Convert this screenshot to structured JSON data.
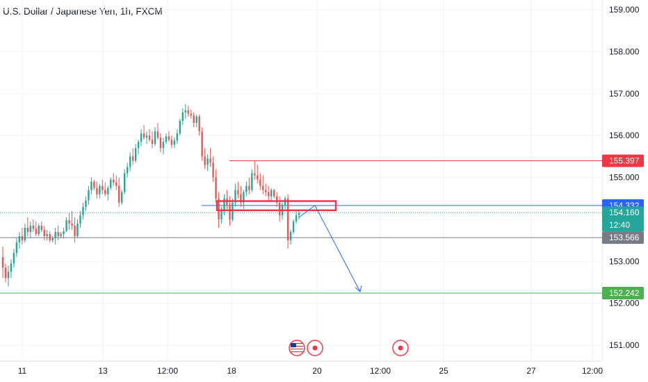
{
  "header": {
    "title": "U.S. Dollar / Japanese Yen, 1h, FXCM"
  },
  "colors": {
    "up": "#26a69a",
    "down": "#ef5350",
    "grid": "#f0f3fa",
    "resistance": "#f23645",
    "support": "#4caf50",
    "blue": "#2962ff",
    "gray": "#787b86"
  },
  "icons": [
    "us-flag-icon",
    "economic-event-icon",
    "economic-event-icon"
  ],
  "chart_data": {
    "type": "candlestick",
    "title": "U.S. Dollar / Japanese Yen, 1h, FXCM",
    "symbol": "USDJPY",
    "interval": "1h",
    "source": "FXCM",
    "y_axis": {
      "ticks": [
        "151.000",
        "152.000",
        "153.000",
        "154.000",
        "155.000",
        "156.000",
        "157.000",
        "158.000",
        "159.000"
      ],
      "range": [
        150.7,
        159.25
      ],
      "side": "right"
    },
    "x_axis": {
      "ticks": [
        "11",
        "13",
        "12:00",
        "18",
        "20",
        "12:00",
        "25",
        "27",
        "12:00"
      ]
    },
    "price_labels": [
      {
        "id": "resistance",
        "text": "155.397",
        "value": 155.397,
        "color": "#f23645"
      },
      {
        "id": "level",
        "text": "154.332",
        "value": 154.332,
        "color": "#2962ff"
      },
      {
        "id": "current",
        "text": "154.160",
        "value": 154.16,
        "countdown": "12:40",
        "color": "#26a69a"
      },
      {
        "id": "gray",
        "text": "153.566",
        "value": 153.566,
        "color": "#787b86"
      },
      {
        "id": "target",
        "text": "152.242",
        "value": 152.242,
        "color": "#4caf50"
      }
    ],
    "candles": [
      [
        153.1,
        153.35,
        152.6,
        152.85
      ],
      [
        152.85,
        152.95,
        152.5,
        152.6
      ],
      [
        152.6,
        152.9,
        152.4,
        152.75
      ],
      [
        152.75,
        153.05,
        152.6,
        152.95
      ],
      [
        152.95,
        153.3,
        152.85,
        153.2
      ],
      [
        153.2,
        153.55,
        153.1,
        153.45
      ],
      [
        153.45,
        153.7,
        153.3,
        153.6
      ],
      [
        153.6,
        153.8,
        153.4,
        153.5
      ],
      [
        153.5,
        153.9,
        153.45,
        153.8
      ],
      [
        153.8,
        154.05,
        153.6,
        153.7
      ],
      [
        153.7,
        153.95,
        153.55,
        153.85
      ],
      [
        153.85,
        154.0,
        153.7,
        153.78
      ],
      [
        153.78,
        153.95,
        153.6,
        153.65
      ],
      [
        153.65,
        153.9,
        153.6,
        153.85
      ],
      [
        153.85,
        153.95,
        153.7,
        153.75
      ],
      [
        153.75,
        153.85,
        153.5,
        153.6
      ],
      [
        153.6,
        153.75,
        153.5,
        153.65
      ],
      [
        153.65,
        153.72,
        153.45,
        153.5
      ],
      [
        153.5,
        153.6,
        153.45,
        153.55
      ],
      [
        153.55,
        153.8,
        153.4,
        153.7
      ],
      [
        153.7,
        153.85,
        153.5,
        153.6
      ],
      [
        153.6,
        153.7,
        153.55,
        153.65
      ],
      [
        153.65,
        153.8,
        153.55,
        153.72
      ],
      [
        153.72,
        154.05,
        153.7,
        153.98
      ],
      [
        153.98,
        154.15,
        153.75,
        153.9
      ],
      [
        153.9,
        154.2,
        153.75,
        153.85
      ],
      [
        153.85,
        154.05,
        153.45,
        153.6
      ],
      [
        153.6,
        154.0,
        153.55,
        153.9
      ],
      [
        153.9,
        154.2,
        153.8,
        154.1
      ],
      [
        154.1,
        154.4,
        154.0,
        154.3
      ],
      [
        154.3,
        154.55,
        154.2,
        154.45
      ],
      [
        154.45,
        154.8,
        154.35,
        154.7
      ],
      [
        154.7,
        155.0,
        154.6,
        154.9
      ],
      [
        154.9,
        154.95,
        154.7,
        154.75
      ],
      [
        154.75,
        154.9,
        154.5,
        154.6
      ],
      [
        154.6,
        154.85,
        154.5,
        154.8
      ],
      [
        154.8,
        154.95,
        154.6,
        154.7
      ],
      [
        154.7,
        154.88,
        154.55,
        154.6
      ],
      [
        154.6,
        154.8,
        154.45,
        154.75
      ],
      [
        154.75,
        155.0,
        154.7,
        154.95
      ],
      [
        154.95,
        155.1,
        154.8,
        154.88
      ],
      [
        154.88,
        155.05,
        154.7,
        154.8
      ],
      [
        154.8,
        155.0,
        154.3,
        154.4
      ],
      [
        154.4,
        154.7,
        154.35,
        154.65
      ],
      [
        154.65,
        155.2,
        154.6,
        155.1
      ],
      [
        155.1,
        155.35,
        155.0,
        155.25
      ],
      [
        155.25,
        155.6,
        155.15,
        155.5
      ],
      [
        155.5,
        155.7,
        155.3,
        155.4
      ],
      [
        155.4,
        155.8,
        155.35,
        155.7
      ],
      [
        155.7,
        155.9,
        155.55,
        155.85
      ],
      [
        155.85,
        156.15,
        155.75,
        156.05
      ],
      [
        156.05,
        156.25,
        155.9,
        155.95
      ],
      [
        155.95,
        156.1,
        155.8,
        156.0
      ],
      [
        156.0,
        156.15,
        155.85,
        155.9
      ],
      [
        155.9,
        156.1,
        155.7,
        155.8
      ],
      [
        155.8,
        156.2,
        155.75,
        156.1
      ],
      [
        156.1,
        156.3,
        155.9,
        155.95
      ],
      [
        155.95,
        156.05,
        155.6,
        155.7
      ],
      [
        155.7,
        155.95,
        155.55,
        155.85
      ],
      [
        155.85,
        156.05,
        155.8,
        155.98
      ],
      [
        155.98,
        156.1,
        155.85,
        155.9
      ],
      [
        155.9,
        156.0,
        155.7,
        155.78
      ],
      [
        155.78,
        155.95,
        155.7,
        155.88
      ],
      [
        155.88,
        156.15,
        155.8,
        156.05
      ],
      [
        156.05,
        156.4,
        156.0,
        156.35
      ],
      [
        156.35,
        156.65,
        156.25,
        156.55
      ],
      [
        156.55,
        156.75,
        156.4,
        156.6
      ],
      [
        156.6,
        156.7,
        156.45,
        156.52
      ],
      [
        156.52,
        156.62,
        156.4,
        156.48
      ],
      [
        156.48,
        156.55,
        156.2,
        156.3
      ],
      [
        156.3,
        156.5,
        156.2,
        156.45
      ],
      [
        156.45,
        156.5,
        156.0,
        156.1
      ],
      [
        156.1,
        156.2,
        155.4,
        155.5
      ],
      [
        155.5,
        155.7,
        155.2,
        155.3
      ],
      [
        155.3,
        155.55,
        155.15,
        155.45
      ],
      [
        155.45,
        155.7,
        155.25,
        155.35
      ],
      [
        155.35,
        155.5,
        154.9,
        155.0
      ],
      [
        155.0,
        155.2,
        154.4,
        154.5
      ],
      [
        154.5,
        154.65,
        153.8,
        154.0
      ],
      [
        154.0,
        154.3,
        153.9,
        154.2
      ],
      [
        154.2,
        154.6,
        154.1,
        154.5
      ],
      [
        154.5,
        154.7,
        154.25,
        154.35
      ],
      [
        154.35,
        154.55,
        153.85,
        154.0
      ],
      [
        154.0,
        154.5,
        153.95,
        154.4
      ],
      [
        154.4,
        154.85,
        154.3,
        154.7
      ],
      [
        154.7,
        154.9,
        154.5,
        154.6
      ],
      [
        154.6,
        154.8,
        154.3,
        154.4
      ],
      [
        154.4,
        154.7,
        154.25,
        154.65
      ],
      [
        154.65,
        154.9,
        154.55,
        154.8
      ],
      [
        154.8,
        155.0,
        154.6,
        154.7
      ],
      [
        154.7,
        155.2,
        154.65,
        155.1
      ],
      [
        155.1,
        155.4,
        154.95,
        155.05
      ],
      [
        155.05,
        155.3,
        154.85,
        154.95
      ],
      [
        154.95,
        155.1,
        154.7,
        154.8
      ],
      [
        154.8,
        155.05,
        154.6,
        154.7
      ],
      [
        154.7,
        154.85,
        154.55,
        154.65
      ],
      [
        154.65,
        154.8,
        154.45,
        154.55
      ],
      [
        154.55,
        154.75,
        154.45,
        154.7
      ],
      [
        154.7,
        154.72,
        154.5,
        154.55
      ],
      [
        154.55,
        154.65,
        154.3,
        154.4
      ],
      [
        154.4,
        154.55,
        153.95,
        154.1
      ],
      [
        154.1,
        154.4,
        154.0,
        154.35
      ],
      [
        154.35,
        154.55,
        154.25,
        154.5
      ],
      [
        154.5,
        154.6,
        153.3,
        153.5
      ],
      [
        153.5,
        153.75,
        153.4,
        153.7
      ],
      [
        153.7,
        154.0,
        153.65,
        153.95
      ],
      [
        153.95,
        154.2,
        153.9,
        154.1
      ],
      [
        154.1,
        154.22,
        154.0,
        154.16
      ]
    ],
    "levels": [
      {
        "id": "resistance",
        "value": 155.397,
        "style": "solid",
        "color": "#f23645"
      },
      {
        "id": "level",
        "value": 154.332,
        "style": "solid",
        "color": "#2962ff"
      },
      {
        "id": "current",
        "value": 154.16,
        "style": "dotted",
        "color": "#26a69a"
      },
      {
        "id": "gray",
        "value": 153.566,
        "style": "solid",
        "color": "#787b86"
      },
      {
        "id": "target",
        "value": 152.242,
        "style": "solid",
        "color": "#4caf50"
      }
    ],
    "zone": {
      "from": 154.25,
      "to": 154.42,
      "color": "#f23645"
    },
    "projection": {
      "path": [
        [
          154.16,
          "start"
        ],
        [
          154.332,
          "peak"
        ],
        [
          152.242,
          "target"
        ]
      ],
      "color": "#2962ff"
    }
  }
}
